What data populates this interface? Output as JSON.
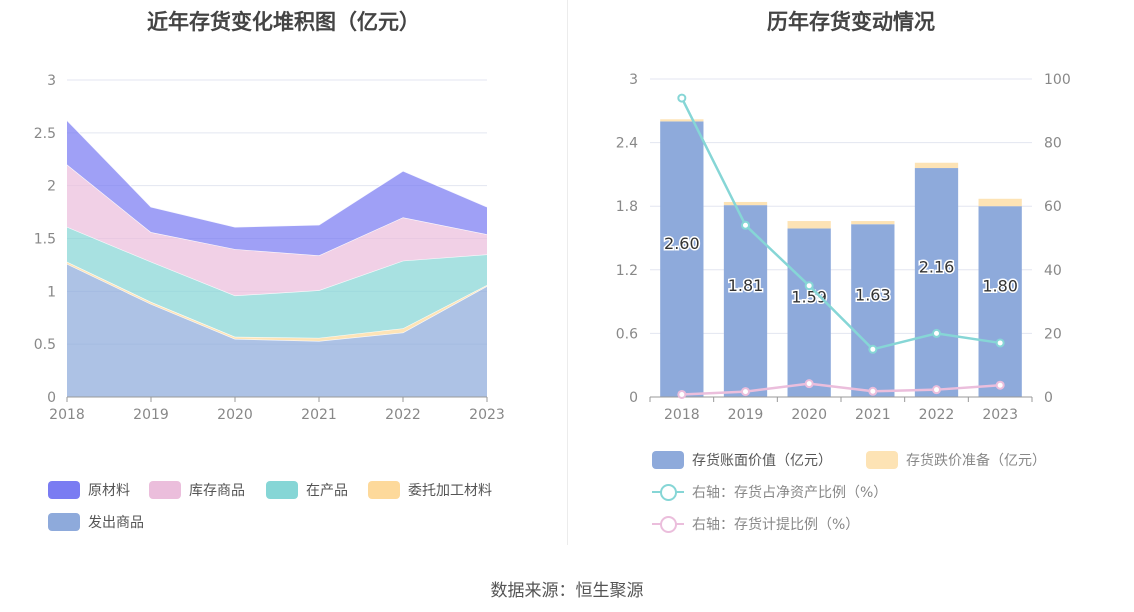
{
  "source": "数据来源：恒生聚源",
  "chart_data": [
    {
      "type": "area",
      "stacked": true,
      "title": "近年存货变化堆积图（亿元）",
      "categories": [
        "2018",
        "2019",
        "2020",
        "2021",
        "2022",
        "2023"
      ],
      "ylim": [
        0,
        3
      ],
      "yticks": [
        "0",
        "0.5",
        "1",
        "1.5",
        "2",
        "2.5",
        "3"
      ],
      "grid": true,
      "legend_position": "bottom",
      "series": [
        {
          "name": "发出商品",
          "color": "#8eaadb",
          "values": [
            1.26,
            0.88,
            0.55,
            0.53,
            0.61,
            1.05
          ]
        },
        {
          "name": "委托加工材料",
          "color": "#fdd99b",
          "values": [
            0.02,
            0.02,
            0.02,
            0.03,
            0.04,
            0.01
          ]
        },
        {
          "name": "在产品",
          "color": "#86d6d6",
          "values": [
            0.33,
            0.38,
            0.39,
            0.45,
            0.64,
            0.29
          ]
        },
        {
          "name": "库存商品",
          "color": "#ebbedc",
          "values": [
            0.59,
            0.28,
            0.44,
            0.33,
            0.41,
            0.19
          ]
        },
        {
          "name": "原材料",
          "color": "#7a7cf2",
          "values": [
            0.42,
            0.24,
            0.21,
            0.29,
            0.44,
            0.26
          ]
        }
      ],
      "legend_order": [
        "原材料",
        "库存商品",
        "在产品",
        "委托加工材料",
        "发出商品"
      ]
    },
    {
      "type": "bar",
      "title": "历年存货变动情况",
      "categories": [
        "2018",
        "2019",
        "2020",
        "2021",
        "2022",
        "2023"
      ],
      "ylim": [
        0,
        3
      ],
      "yticks": [
        "0",
        "0.6",
        "1.2",
        "1.8",
        "2.4",
        "3"
      ],
      "y2lim": [
        0,
        100
      ],
      "y2ticks": [
        "0",
        "20",
        "40",
        "60",
        "80",
        "100"
      ],
      "grid": true,
      "legend_position": "bottom",
      "bars": [
        {
          "name": "存货账面价值（亿元）",
          "color": "#8eaadb",
          "values": [
            2.6,
            1.81,
            1.59,
            1.63,
            2.16,
            1.8
          ],
          "labels": [
            "2.60",
            "1.81",
            "1.59",
            "1.63",
            "2.16",
            "1.80"
          ]
        },
        {
          "name": "存货跌价准备（亿元）",
          "color": "#fde3b5",
          "values": [
            0.02,
            0.03,
            0.07,
            0.03,
            0.05,
            0.07
          ]
        }
      ],
      "lines": [
        {
          "name": "右轴：存货占净资产比例（%）",
          "color": "#86d6d6",
          "axis": "right",
          "values": [
            94,
            54,
            35,
            15,
            20,
            17
          ]
        },
        {
          "name": "右轴：存货计提比例（%）",
          "color": "#ebbedc",
          "axis": "right",
          "values": [
            0.8,
            1.7,
            4.2,
            1.8,
            2.3,
            3.7
          ]
        }
      ]
    }
  ]
}
